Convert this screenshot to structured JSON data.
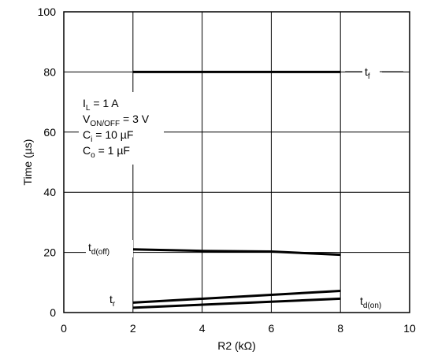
{
  "chart_data": {
    "type": "line",
    "title": "",
    "xlabel": "R2 (kΩ)",
    "ylabel": "Time (µs)",
    "xlim": [
      0,
      10
    ],
    "ylim": [
      0,
      100
    ],
    "xticks": [
      "0",
      "2",
      "4",
      "6",
      "8",
      "10"
    ],
    "yticks": [
      "0",
      "20",
      "40",
      "60",
      "80",
      "100"
    ],
    "grid": true,
    "legend": "none",
    "series": [
      {
        "name": "t_f",
        "label_main": "t",
        "label_sub": "f",
        "x": [
          2,
          8
        ],
        "y": [
          80,
          80
        ]
      },
      {
        "name": "t_d(off)",
        "label_main": "t",
        "label_sub": "d(off)",
        "x": [
          2,
          4,
          6,
          8
        ],
        "y": [
          21,
          20.5,
          20.3,
          19.2
        ]
      },
      {
        "name": "t_r",
        "label_main": "t",
        "label_sub": "r",
        "x": [
          2,
          8
        ],
        "y": [
          3.3,
          7.2
        ]
      },
      {
        "name": "t_d(on)",
        "label_main": "t",
        "label_sub": "d(on)",
        "x": [
          2,
          8
        ],
        "y": [
          1.6,
          4.6
        ]
      }
    ],
    "conditions": [
      {
        "main": "I",
        "sub": "L",
        "rest": " = 1 A"
      },
      {
        "main": "V",
        "sub": "ON/OFF",
        "rest": " = 3 V"
      },
      {
        "main": "C",
        "sub": "i",
        "rest": " = 10 µF"
      },
      {
        "main": "C",
        "sub": "o",
        "rest": " = 1 µF"
      }
    ]
  }
}
